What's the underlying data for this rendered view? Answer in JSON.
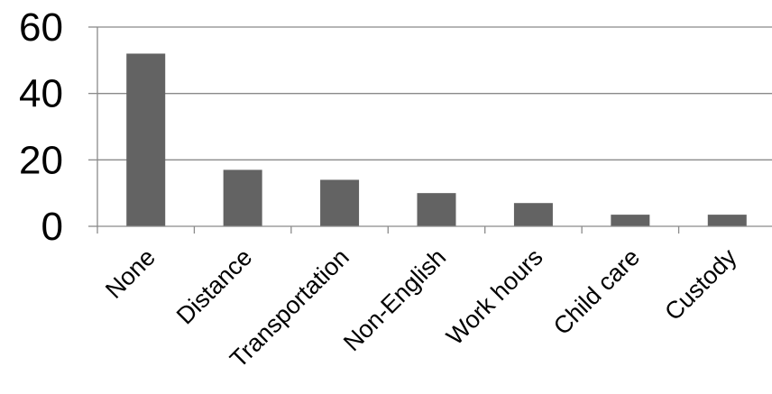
{
  "chart_data": {
    "type": "bar",
    "categories": [
      "None",
      "Distance",
      "Transportation",
      "Non-English",
      "Work hours",
      "Child care",
      "Custody"
    ],
    "values": [
      52,
      17,
      14,
      10,
      7,
      3.5,
      3.5
    ],
    "title": "",
    "xlabel": "",
    "ylabel": "",
    "ylim": [
      0,
      60
    ],
    "yticks": [
      "0",
      "20",
      "40",
      "60"
    ],
    "grid": true,
    "legend": "none",
    "colors": {
      "bar": "#636363",
      "grid": "#8a8a8a",
      "axis": "#8a8a8a",
      "text": "#000000"
    }
  }
}
